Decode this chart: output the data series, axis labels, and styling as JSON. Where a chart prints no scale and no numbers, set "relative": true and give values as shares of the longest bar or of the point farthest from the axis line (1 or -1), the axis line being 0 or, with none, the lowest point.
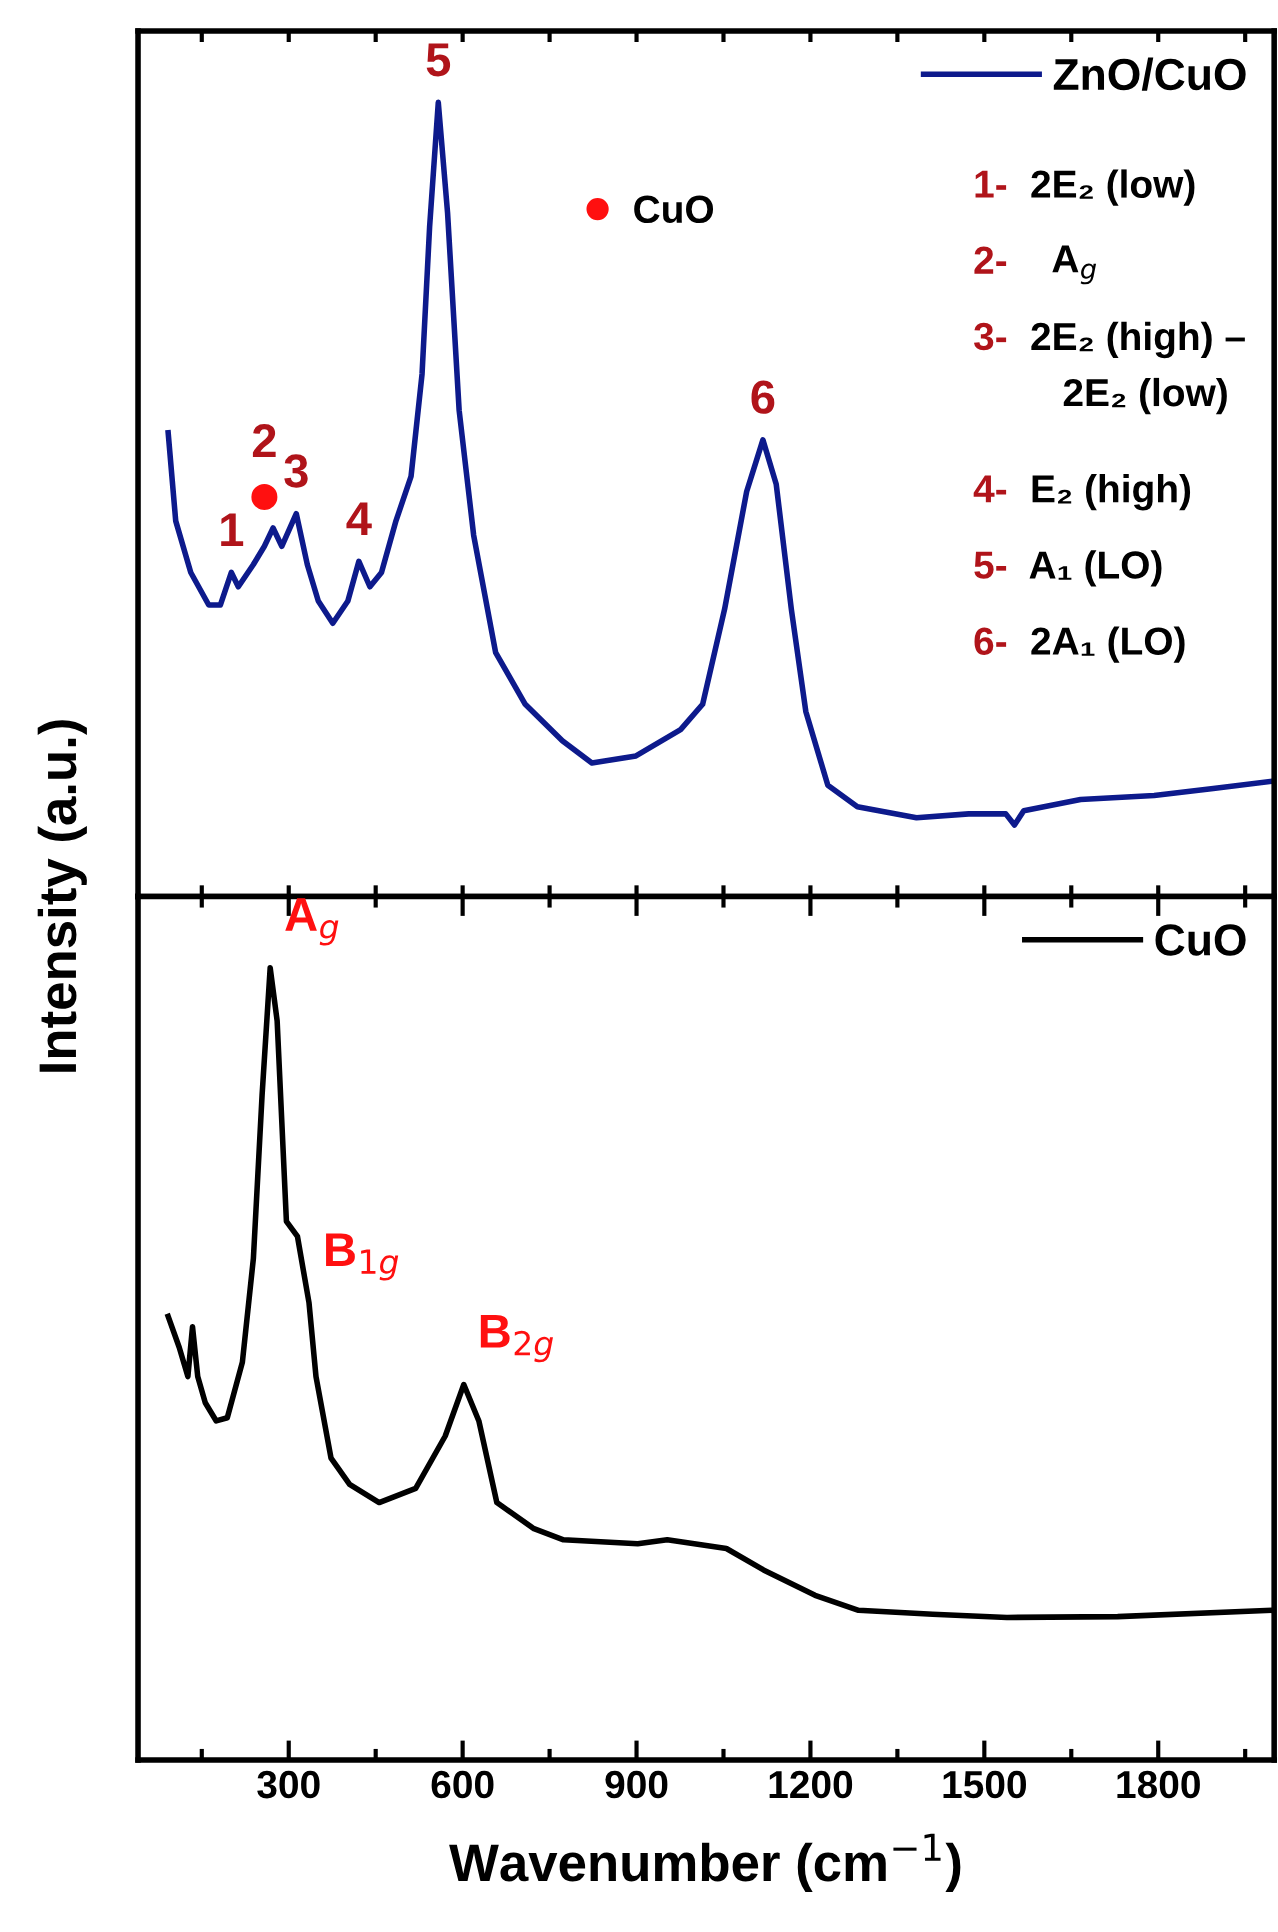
{
  "chart_data": [
    {
      "type": "line",
      "relative": true,
      "ylabel": "Intensity (a.u.)",
      "xlim": [
        40,
        2000
      ],
      "xticks": [
        {
          "value": 150,
          "label": null
        },
        {
          "value": 300,
          "label": null
        },
        {
          "value": 450,
          "label": null
        },
        {
          "value": 600,
          "label": null
        },
        {
          "value": 750,
          "label": null
        },
        {
          "value": 900,
          "label": null
        },
        {
          "value": 1050,
          "label": null
        },
        {
          "value": 1200,
          "label": null
        },
        {
          "value": 1350,
          "label": null
        },
        {
          "value": 1500,
          "label": null
        },
        {
          "value": 1650,
          "label": null
        },
        {
          "value": 1800,
          "label": null
        },
        {
          "value": 1950,
          "label": null
        }
      ],
      "tick_labels": false,
      "legend": "top right",
      "series": [
        {
          "name": "ZnO/CuO",
          "color": "#0d1a8c",
          "x": [
            92,
            105,
            131,
            162,
            182,
            201,
            213,
            239,
            258,
            273,
            288,
            313,
            332,
            351,
            376,
            402,
            421,
            440,
            460,
            485,
            511,
            530,
            543,
            558,
            574,
            594,
            619,
            657,
            708,
            772,
            823,
            899,
            976,
            1014,
            1052,
            1090,
            1118,
            1141,
            1167,
            1192,
            1230,
            1281,
            1383,
            1473,
            1537,
            1552,
            1568,
            1666,
            1793,
            1895,
            1995
          ],
          "values": [
            0.584,
            0.473,
            0.408,
            0.367,
            0.367,
            0.408,
            0.39,
            0.418,
            0.441,
            0.464,
            0.441,
            0.482,
            0.418,
            0.372,
            0.344,
            0.372,
            0.422,
            0.39,
            0.408,
            0.473,
            0.529,
            0.658,
            0.843,
            1.0,
            0.861,
            0.612,
            0.455,
            0.307,
            0.242,
            0.196,
            0.168,
            0.177,
            0.21,
            0.242,
            0.362,
            0.51,
            0.575,
            0.519,
            0.362,
            0.233,
            0.14,
            0.113,
            0.099,
            0.104,
            0.104,
            0.09,
            0.108,
            0.122,
            0.127,
            0.136,
            0.145
          ]
        },
        {
          "type": "scatter",
          "name": "CuO",
          "color": "#ff1010",
          "marker": "circle",
          "x": [
            258
          ],
          "values": [
            0.503
          ]
        }
      ],
      "annotations": [
        {
          "text": "1",
          "x": 201,
          "y": 0.408
        },
        {
          "text": "2",
          "x": 258,
          "y": 0.52
        },
        {
          "text": "3",
          "x": 313,
          "y": 0.482
        },
        {
          "text": "4",
          "x": 421,
          "y": 0.422
        },
        {
          "text": "5",
          "x": 558,
          "y": 1.0
        },
        {
          "text": "6",
          "x": 1118,
          "y": 0.575
        },
        "1- 2E₂ (low)",
        "2-   A$_{g}$",
        "3- 2E₂ (high) –\n    2E₂ (low)",
        "4- E₂ (high)",
        "5- A₁ (LO)",
        "6- 2A₁ (LO)"
      ]
    },
    {
      "type": "line",
      "relative": true,
      "xlabel": "Wavenumber (cm$^{−1}$)",
      "xlim": [
        40,
        2000
      ],
      "xticks": [
        {
          "value": 150,
          "label": null
        },
        300,
        {
          "value": 450,
          "label": null
        },
        600,
        {
          "value": 750,
          "label": null
        },
        900,
        {
          "value": 1050,
          "label": null
        },
        1200,
        {
          "value": 1350,
          "label": null
        },
        1500,
        {
          "value": 1650,
          "label": null
        },
        1800,
        {
          "value": 1950,
          "label": null
        }
      ],
      "tick_labels": "x",
      "legend": "top right",
      "series": [
        {
          "name": "CuO",
          "color": "#000000",
          "x": [
            92,
            111,
            126,
            134,
            143,
            156,
            175,
            194,
            220,
            239,
            254,
            268,
            280,
            296,
            315,
            335,
            347,
            373,
            405,
            456,
            519,
            570,
            602,
            628,
            659,
            723,
            774,
            902,
            953,
            1055,
            1119,
            1208,
            1283,
            1411,
            1539,
            1730,
            1995
          ],
          "values": [
            0.56,
            0.521,
            0.484,
            0.547,
            0.484,
            0.451,
            0.428,
            0.432,
            0.502,
            0.633,
            0.839,
            1.0,
            0.933,
            0.68,
            0.661,
            0.577,
            0.484,
            0.381,
            0.348,
            0.325,
            0.343,
            0.409,
            0.474,
            0.428,
            0.325,
            0.292,
            0.278,
            0.273,
            0.278,
            0.267,
            0.24,
            0.208,
            0.189,
            0.184,
            0.18,
            0.181,
            0.189
          ]
        }
      ],
      "annotations": [
        {
          "text": "A$_{g}$",
          "x": 268,
          "y": 1.0
        },
        {
          "text": "B$_{1g}$",
          "x": 335,
          "y": 0.577
        },
        {
          "text": "B$_{2g}$",
          "x": 602,
          "y": 0.474
        }
      ]
    }
  ]
}
